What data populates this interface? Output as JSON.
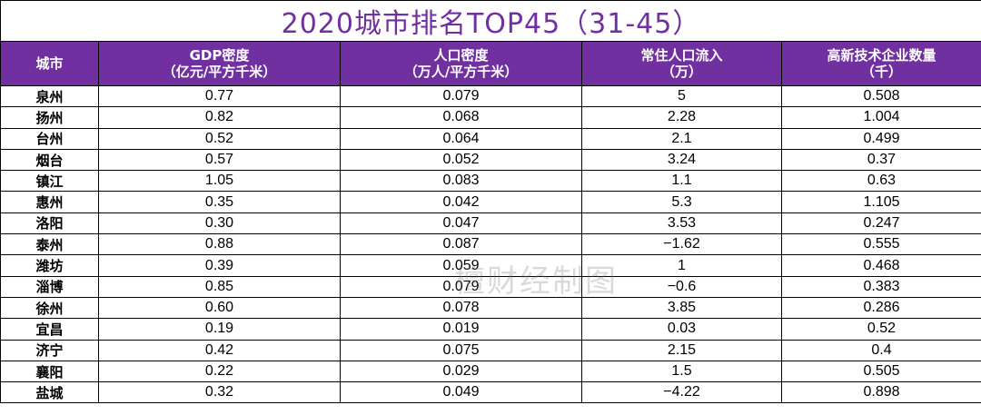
{
  "title": "2020城市排名TOP45（31-45）",
  "columns": [
    {
      "line1": "城市",
      "line2": ""
    },
    {
      "line1": "GDP密度",
      "line2": "（亿元/平方千米）"
    },
    {
      "line1": "人口密度",
      "line2": "（万人/平方千米）"
    },
    {
      "line1": "常住人口流入",
      "line2": "（万）"
    },
    {
      "line1": "高新技术企业数量",
      "line2": "（千）"
    }
  ],
  "rows": [
    [
      "泉州",
      "0.77",
      "0.079",
      "5",
      "0.508"
    ],
    [
      "扬州",
      "0.82",
      "0.068",
      "2.28",
      "1.004"
    ],
    [
      "台州",
      "0.52",
      "0.064",
      "2.1",
      "0.499"
    ],
    [
      "烟台",
      "0.57",
      "0.052",
      "3.24",
      "0.37"
    ],
    [
      "镇江",
      "1.05",
      "0.083",
      "1.1",
      "0.63"
    ],
    [
      "惠州",
      "0.35",
      "0.042",
      "5.3",
      "1.105"
    ],
    [
      "洛阳",
      "0.30",
      "0.047",
      "3.53",
      "0.247"
    ],
    [
      "泰州",
      "0.88",
      "0.087",
      "−1.62",
      "0.555"
    ],
    [
      "潍坊",
      "0.39",
      "0.059",
      "1",
      "0.468"
    ],
    [
      "淄博",
      "0.85",
      "0.079",
      "−0.6",
      "0.383"
    ],
    [
      "徐州",
      "0.60",
      "0.078",
      "3.85",
      "0.286"
    ],
    [
      "宜昌",
      "0.19",
      "0.019",
      "0.03",
      "0.52"
    ],
    [
      "济宁",
      "0.42",
      "0.075",
      "2.15",
      "0.4"
    ],
    [
      "襄阳",
      "0.22",
      "0.029",
      "1.5",
      "0.505"
    ],
    [
      "盐城",
      "0.32",
      "0.049",
      "−4.22",
      "0.898"
    ]
  ],
  "watermark": "檀财经制图"
}
